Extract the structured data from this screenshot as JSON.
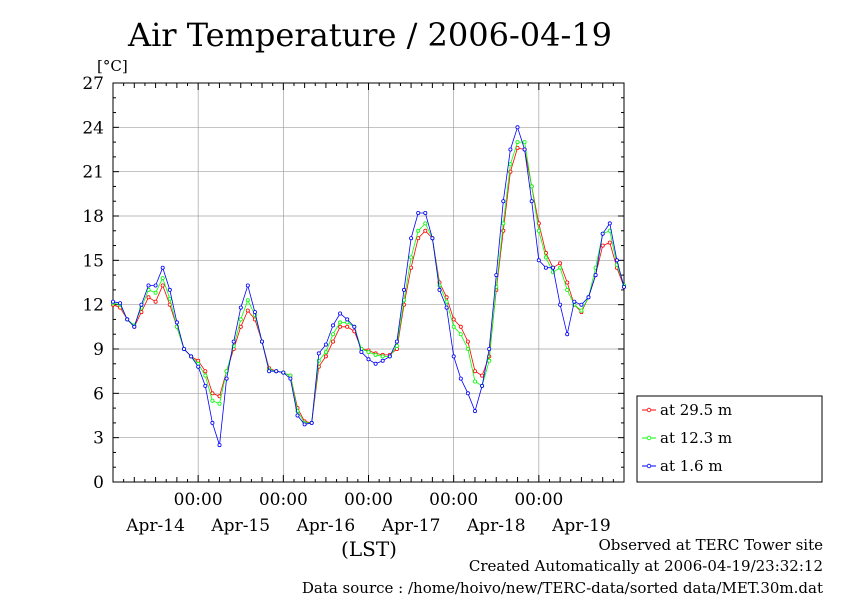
{
  "chart_data": {
    "type": "line",
    "title": "Air Temperature / 2006-04-19",
    "y_unit": "[°C]",
    "xlabel": "(LST)",
    "ylim": [
      0,
      27
    ],
    "yticks": [
      0,
      3,
      6,
      9,
      12,
      15,
      18,
      21,
      24,
      27
    ],
    "xlim_hours": [
      0,
      144
    ],
    "x_time_ticks": [
      "00:00",
      "00:00",
      "00:00",
      "00:00",
      "00:00"
    ],
    "x_time_tick_hours": [
      24,
      48,
      72,
      96,
      120
    ],
    "x_day_labels": [
      "Apr-14",
      "Apr-15",
      "Apr-16",
      "Apr-17",
      "Apr-18",
      "Apr-19"
    ],
    "x_day_label_hours": [
      12,
      36,
      60,
      84,
      108,
      132
    ],
    "grid": true,
    "legend_position": "bottom-right, outside plot",
    "series": [
      {
        "name": "at 29.5 m",
        "color": "#ff0000",
        "x": [
          0,
          2,
          4,
          6,
          8,
          10,
          12,
          14,
          16,
          18,
          20,
          22,
          24,
          26,
          28,
          30,
          32,
          34,
          36,
          38,
          40,
          42,
          44,
          46,
          48,
          50,
          52,
          54,
          56,
          58,
          60,
          62,
          64,
          66,
          68,
          70,
          72,
          74,
          76,
          78,
          80,
          82,
          84,
          86,
          88,
          90,
          92,
          94,
          96,
          98,
          100,
          102,
          104,
          106,
          108,
          110,
          112,
          114,
          116,
          118,
          120,
          122,
          124,
          126,
          128,
          130,
          132,
          134,
          136,
          138,
          140,
          142,
          144
        ],
        "values": [
          12,
          11.8,
          11,
          10.5,
          11.5,
          12.5,
          12.2,
          13.3,
          12,
          10.5,
          9,
          8.5,
          8.2,
          7.5,
          6,
          5.8,
          7.5,
          9,
          10.5,
          11.6,
          11,
          9.5,
          7.7,
          7.5,
          7.4,
          7.2,
          5,
          4.1,
          4,
          7.8,
          8.5,
          9.5,
          10.5,
          10.5,
          10.2,
          9,
          8.9,
          8.7,
          8.6,
          8.6,
          9,
          12,
          14.5,
          16.5,
          17,
          16.5,
          13.5,
          12.5,
          11,
          10.5,
          9.5,
          7.5,
          7.2,
          8.5,
          13,
          17,
          21,
          22.6,
          22.5,
          20,
          17.5,
          15.5,
          14.5,
          14.8,
          13.5,
          12,
          11.5,
          12.5,
          14,
          16,
          16.2,
          14.5,
          13.2
        ]
      },
      {
        "name": "at 12.3 m",
        "color": "#00ff00",
        "x": [
          0,
          2,
          4,
          6,
          8,
          10,
          12,
          14,
          16,
          18,
          20,
          22,
          24,
          26,
          28,
          30,
          32,
          34,
          36,
          38,
          40,
          42,
          44,
          46,
          48,
          50,
          52,
          54,
          56,
          58,
          60,
          62,
          64,
          66,
          68,
          70,
          72,
          74,
          76,
          78,
          80,
          82,
          84,
          86,
          88,
          90,
          92,
          94,
          96,
          98,
          100,
          102,
          104,
          106,
          108,
          110,
          112,
          114,
          116,
          118,
          120,
          122,
          124,
          126,
          128,
          130,
          132,
          134,
          136,
          138,
          140,
          142,
          144
        ],
        "values": [
          12.1,
          12,
          11,
          10.6,
          11.8,
          13,
          12.8,
          13.8,
          12.4,
          10.5,
          9,
          8.5,
          8,
          7.2,
          5.5,
          5.3,
          7.5,
          9.2,
          11,
          12.3,
          11.3,
          9.5,
          7.6,
          7.5,
          7.4,
          7.2,
          4.8,
          4,
          4,
          8.2,
          8.8,
          10,
          10.8,
          10.8,
          10.5,
          9,
          8.8,
          8.6,
          8.5,
          8.5,
          9.2,
          12.3,
          15.2,
          17,
          17.5,
          16.5,
          13.3,
          12.2,
          10.5,
          10,
          9,
          6.8,
          6.5,
          8.2,
          13.2,
          17.5,
          21.5,
          23,
          23,
          20,
          17,
          15.2,
          14.2,
          14.5,
          13,
          12,
          11.6,
          12.5,
          14.5,
          16.8,
          17,
          14.7,
          13.3
        ]
      },
      {
        "name": "at 1.6 m",
        "color": "#0000ff",
        "x": [
          0,
          2,
          4,
          6,
          8,
          10,
          12,
          14,
          16,
          18,
          20,
          22,
          24,
          26,
          28,
          30,
          32,
          34,
          36,
          38,
          40,
          42,
          44,
          46,
          48,
          50,
          52,
          54,
          56,
          58,
          60,
          62,
          64,
          66,
          68,
          70,
          72,
          74,
          76,
          78,
          80,
          82,
          84,
          86,
          88,
          90,
          92,
          94,
          96,
          98,
          100,
          102,
          104,
          106,
          108,
          110,
          112,
          114,
          116,
          118,
          120,
          122,
          124,
          126,
          128,
          130,
          132,
          134,
          136,
          138,
          140,
          142,
          144
        ],
        "values": [
          12.2,
          12.1,
          11,
          10.5,
          12,
          13.3,
          13.3,
          14.5,
          13,
          10.8,
          9,
          8.5,
          7.8,
          6.5,
          4,
          2.5,
          7,
          9.5,
          11.8,
          13.3,
          11.5,
          9.5,
          7.5,
          7.5,
          7.4,
          7,
          4.5,
          3.9,
          4,
          8.7,
          9.3,
          10.6,
          11.4,
          11,
          10.5,
          8.8,
          8.3,
          8,
          8.2,
          8.5,
          9.5,
          13,
          16.5,
          18.2,
          18.2,
          16.5,
          13,
          11.8,
          8.5,
          7,
          6,
          4.8,
          6.5,
          9,
          14,
          19,
          22.5,
          24,
          22.5,
          19,
          15,
          14.5,
          14.5,
          12,
          10,
          12.2,
          12,
          12.5,
          14,
          16.8,
          17.5,
          15,
          13.2
        ]
      }
    ]
  },
  "footer": {
    "line1": "Observed at TERC Tower site",
    "line2": "Created Automatically at 2006-04-19/23:32:12",
    "line3": "Data source : /home/hoivo/new/TERC-data/sorted data/MET.30m.dat"
  }
}
